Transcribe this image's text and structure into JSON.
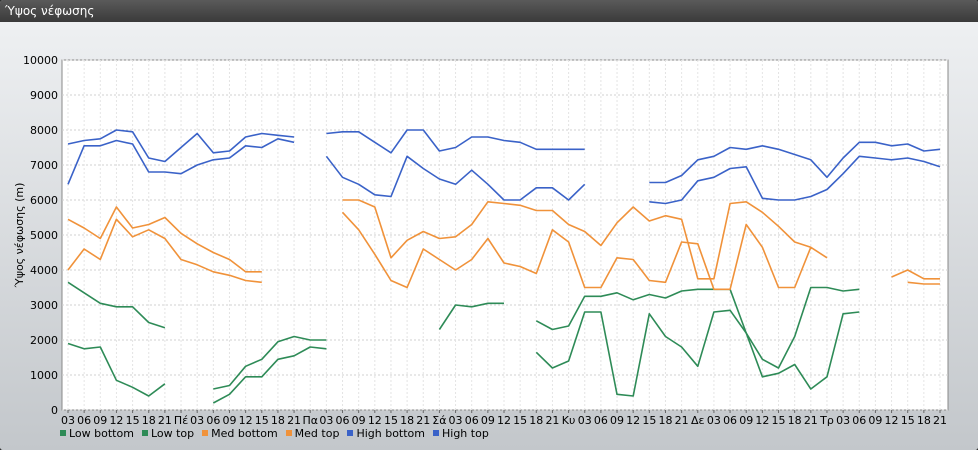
{
  "window": {
    "title": "Ύψος νέφωσης"
  },
  "chart_data": {
    "type": "line",
    "ylabel": "Ύψος νέφωσης (m)",
    "ylim": [
      0,
      10000
    ],
    "yticks": [
      0,
      1000,
      2000,
      3000,
      4000,
      5000,
      6000,
      7000,
      8000,
      9000,
      10000
    ],
    "grid": true,
    "legend_position": "bottom-left",
    "x_tick_labels": [
      "03",
      "06",
      "09",
      "12",
      "15",
      "18",
      "21",
      "Πέ",
      "03",
      "06",
      "09",
      "12",
      "15",
      "18",
      "21",
      "Πα",
      "03",
      "06",
      "09",
      "12",
      "15",
      "18",
      "21",
      "Σά",
      "03",
      "06",
      "09",
      "12",
      "15",
      "18",
      "21",
      "Κυ",
      "03",
      "06",
      "09",
      "12",
      "15",
      "18",
      "21",
      "Δε",
      "03",
      "06",
      "09",
      "12",
      "15",
      "18",
      "21",
      "Τρ",
      "03",
      "06",
      "09",
      "12",
      "15",
      "18",
      "21"
    ],
    "series": [
      {
        "name": "Low bottom",
        "color": "#2e8b57",
        "values": [
          1900,
          1750,
          1800,
          850,
          650,
          400,
          750,
          null,
          null,
          200,
          450,
          950,
          950,
          1450,
          1550,
          1800,
          1750,
          null,
          null,
          null,
          null,
          null,
          null,
          null,
          null,
          null,
          null,
          null,
          null,
          1650,
          1200,
          1400,
          2800,
          2800,
          450,
          400,
          2750,
          2100,
          1800,
          1250,
          2800,
          2850,
          2200,
          950,
          1050,
          1300,
          600,
          950,
          2750,
          2800,
          null,
          null,
          null,
          null,
          null
        ]
      },
      {
        "name": "Low top",
        "color": "#2e8b57",
        "values": [
          3650,
          3350,
          3050,
          2950,
          2950,
          2500,
          2350,
          null,
          null,
          600,
          700,
          1250,
          1450,
          1950,
          2100,
          2000,
          2000,
          null,
          null,
          null,
          null,
          null,
          null,
          2300,
          3000,
          2950,
          3050,
          3050,
          null,
          2550,
          2300,
          2400,
          3250,
          3250,
          3350,
          3150,
          3300,
          3200,
          3400,
          3450,
          3450,
          3450,
          2200,
          1450,
          1200,
          2100,
          3500,
          3500,
          3400,
          3450,
          null,
          null,
          null,
          null,
          null
        ]
      },
      {
        "name": "Med bottom",
        "color": "#f0923a",
        "values": [
          4000,
          4600,
          4300,
          5450,
          4950,
          5150,
          4900,
          4300,
          4150,
          3950,
          3850,
          3700,
          3650,
          null,
          null,
          null,
          null,
          5650,
          5150,
          4450,
          3700,
          3500,
          4600,
          4300,
          4000,
          4300,
          4900,
          4200,
          4100,
          3900,
          5150,
          4800,
          3500,
          3500,
          4350,
          4300,
          3700,
          3650,
          4800,
          4750,
          3450,
          3450,
          5300,
          4650,
          3500,
          3500,
          4650,
          4350,
          null,
          null,
          null,
          null,
          3650,
          3600,
          3600
        ]
      },
      {
        "name": "Med top",
        "color": "#f0923a",
        "values": [
          5450,
          5200,
          4900,
          5800,
          5200,
          5300,
          5500,
          5050,
          4750,
          4500,
          4300,
          3950,
          3950,
          null,
          null,
          null,
          null,
          6000,
          6000,
          5800,
          4350,
          4850,
          5100,
          4900,
          4950,
          5300,
          5950,
          5900,
          5850,
          5700,
          5700,
          5300,
          5100,
          4700,
          5350,
          5800,
          5400,
          5550,
          5450,
          3750,
          3750,
          5900,
          5950,
          5650,
          5250,
          4800,
          4650,
          null,
          null,
          null,
          null,
          3800,
          4000,
          3750,
          3750
        ]
      },
      {
        "name": "High bottom",
        "color": "#3a62c8",
        "values": [
          6450,
          7550,
          7550,
          7700,
          7600,
          6800,
          6800,
          6750,
          7000,
          7150,
          7200,
          7550,
          7500,
          7750,
          7650,
          null,
          7250,
          6650,
          6450,
          6150,
          6100,
          7250,
          6900,
          6600,
          6450,
          6850,
          6450,
          6000,
          6000,
          6350,
          6350,
          6000,
          6450,
          null,
          null,
          null,
          5950,
          5900,
          6000,
          6550,
          6650,
          6900,
          6950,
          6050,
          6000,
          6000,
          6100,
          6300,
          6750,
          7250,
          7200,
          7150,
          7200,
          7100,
          6950
        ]
      },
      {
        "name": "High top",
        "color": "#3a62c8",
        "values": [
          7600,
          7700,
          7750,
          8000,
          7950,
          7200,
          7100,
          7500,
          7900,
          7350,
          7400,
          7800,
          7900,
          7850,
          7800,
          null,
          7900,
          7950,
          7950,
          7650,
          7350,
          8000,
          8000,
          7400,
          7500,
          7800,
          7800,
          7700,
          7650,
          7450,
          7450,
          7450,
          7450,
          null,
          null,
          null,
          6500,
          6500,
          6700,
          7150,
          7250,
          7500,
          7450,
          7550,
          7450,
          7300,
          7150,
          6650,
          7200,
          7650,
          7650,
          7550,
          7600,
          7400,
          7450
        ]
      }
    ]
  }
}
